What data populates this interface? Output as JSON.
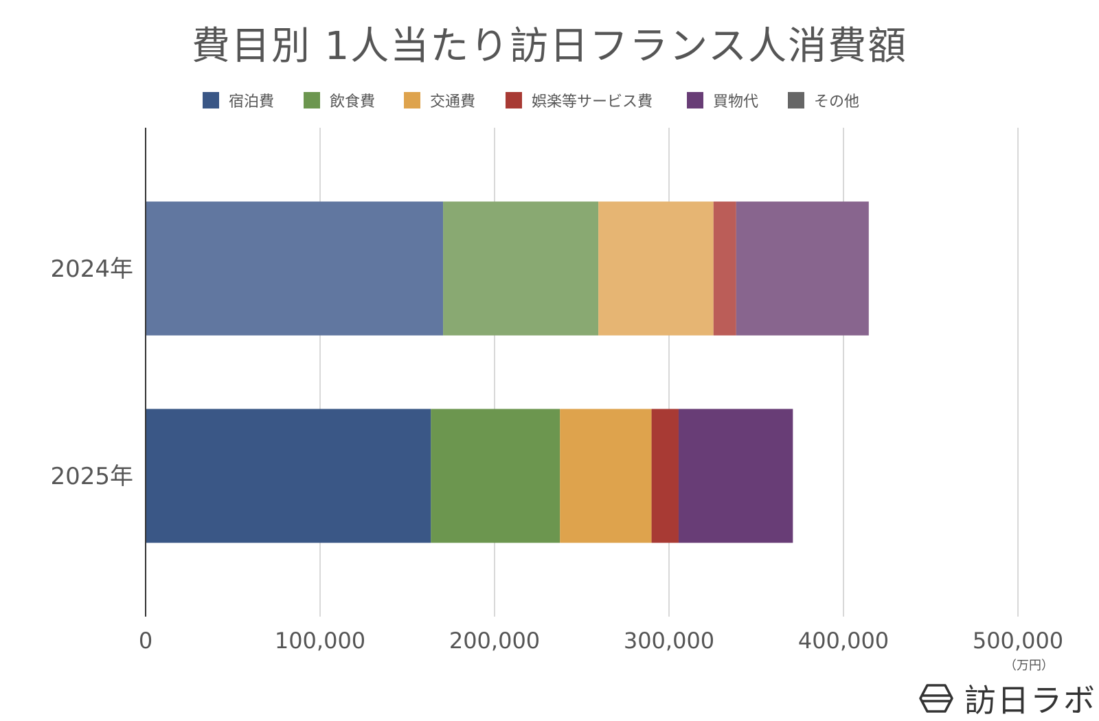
{
  "chart_data": {
    "type": "bar",
    "orientation": "horizontal",
    "stacked": true,
    "title": "費目別 1人当たり訪日フランス人消費額",
    "x_unit_label": "（万円）",
    "categories": [
      "2024年",
      "2025年"
    ],
    "series": [
      {
        "name": "宿泊費",
        "values": [
          170500,
          163500
        ]
      },
      {
        "name": "飲食費",
        "values": [
          89000,
          74000
        ]
      },
      {
        "name": "交通費",
        "values": [
          66000,
          52500
        ]
      },
      {
        "name": "娯楽等サービス費",
        "values": [
          13000,
          15500
        ]
      },
      {
        "name": "買物代",
        "values": [
          76000,
          65500
        ]
      },
      {
        "name": "その他",
        "values": [
          0,
          0
        ]
      }
    ],
    "series_colors_2024": [
      "#6177a0",
      "#89a972",
      "#e6b573",
      "#bb5d58",
      "#88658e",
      "#666666"
    ],
    "series_colors_2025": [
      "#3a5786",
      "#6c964f",
      "#dea34d",
      "#a83a34",
      "#683d76",
      "#666666"
    ],
    "legend_colors": [
      "#3a5786",
      "#6c964f",
      "#dea34d",
      "#a83a34",
      "#683d76",
      "#666666"
    ],
    "xlim": [
      0,
      500000
    ],
    "x_ticks": [
      0,
      100000,
      200000,
      300000,
      400000,
      500000
    ],
    "x_tick_labels": [
      "0",
      "100,000",
      "200,000",
      "300,000",
      "400,000",
      "500,000"
    ],
    "grid": true,
    "legend_position": "top"
  },
  "brand": {
    "text": "訪日ラボ",
    "icon": "hexagon-logo-icon"
  }
}
